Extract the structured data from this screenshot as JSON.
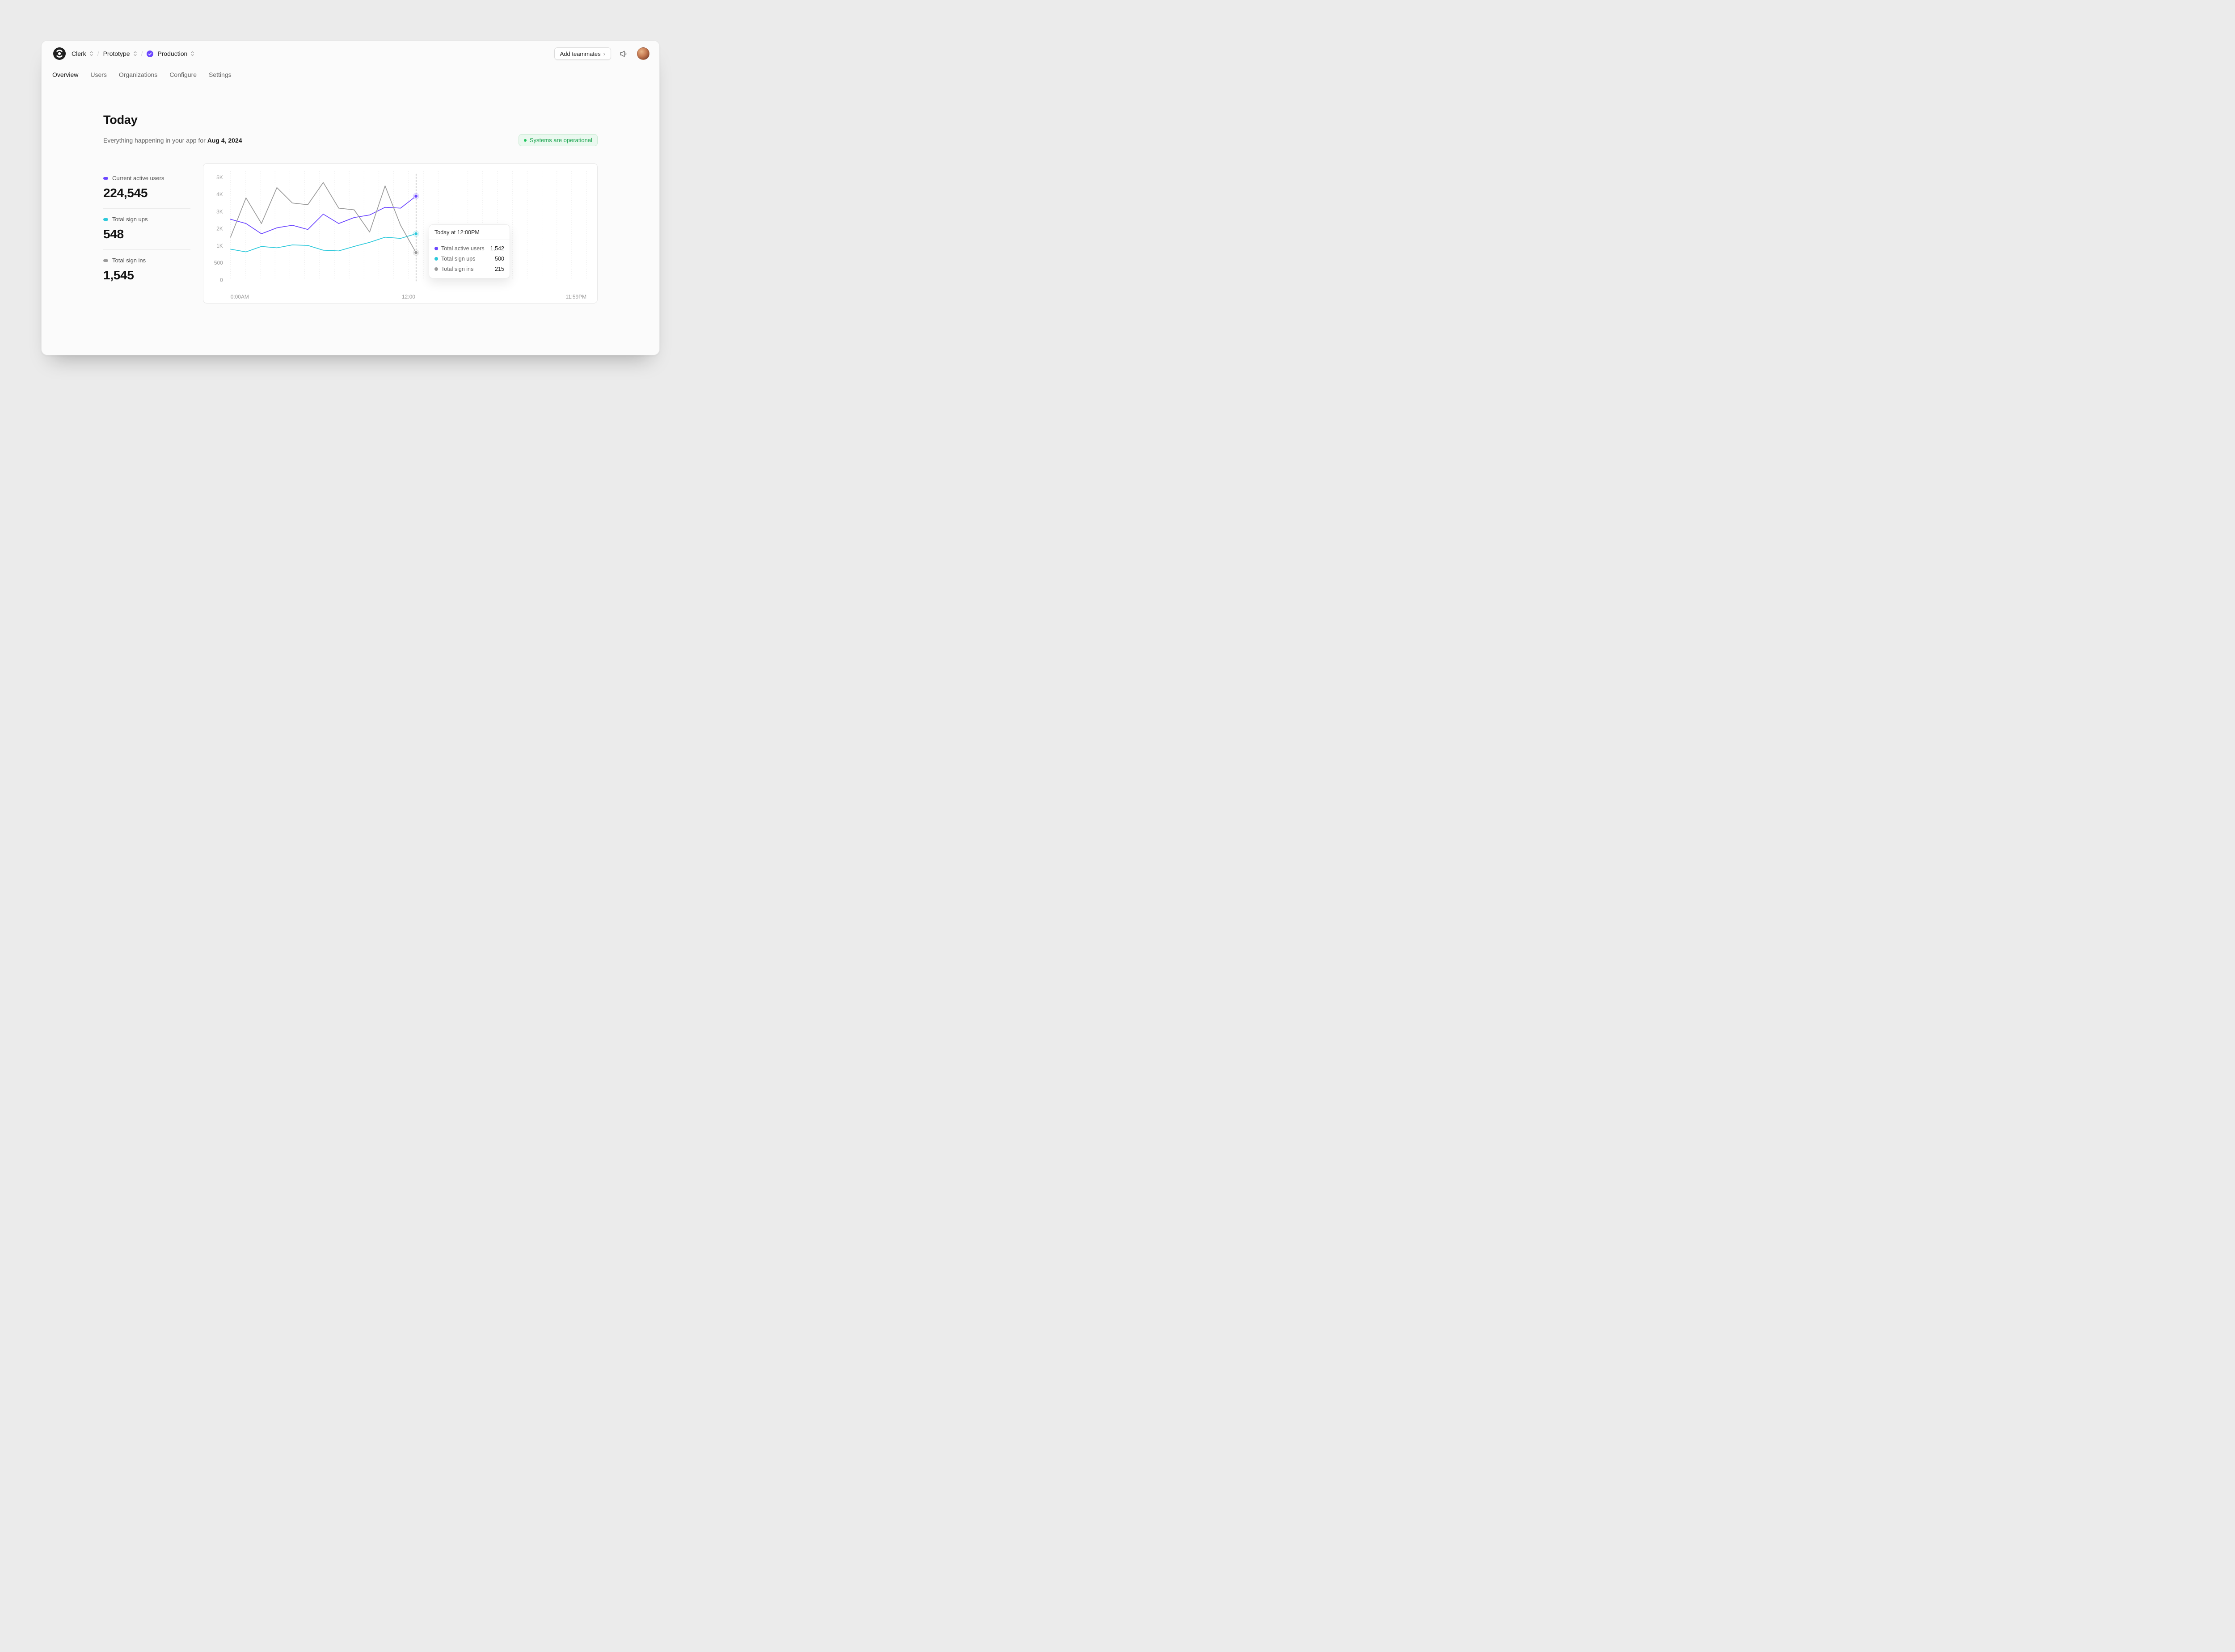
{
  "colors": {
    "accent_purple": "#6C47FF",
    "cyan": "#2DC9DB",
    "gray_series": "#9B9B9B",
    "status_green": "#17A34B"
  },
  "header": {
    "breadcrumb": [
      {
        "label": "Clerk"
      },
      {
        "label": "Prototype"
      },
      {
        "label": "Production"
      }
    ],
    "add_teammates_label": "Add teammates"
  },
  "nav": {
    "tabs": [
      {
        "label": "Overview",
        "active": true
      },
      {
        "label": "Users",
        "active": false
      },
      {
        "label": "Organizations",
        "active": false
      },
      {
        "label": "Configure",
        "active": false
      },
      {
        "label": "Settings",
        "active": false
      }
    ]
  },
  "main": {
    "title": "Today",
    "subtitle_prefix": "Everything happening in your app for ",
    "subtitle_date": "Aug 4, 2024",
    "status_badge": "Systems are operational",
    "stats": [
      {
        "label": "Current active users",
        "value": "224,545",
        "color": "#6C47FF"
      },
      {
        "label": "Total sign ups",
        "value": "548",
        "color": "#2DC9DB"
      },
      {
        "label": "Total sign ins",
        "value": "1,545",
        "color": "#9B9B9B"
      }
    ]
  },
  "tooltip": {
    "title": "Today at 12:00PM",
    "rows": [
      {
        "label": "Total active users",
        "value": "1,542",
        "color": "#6C47FF"
      },
      {
        "label": "Total sign ups",
        "value": "500",
        "color": "#2DC9DB"
      },
      {
        "label": "Total sign ins",
        "value": "215",
        "color": "#9B9B9B"
      }
    ]
  },
  "chart_data": {
    "type": "line",
    "title": "Today activity",
    "x_ticks": [
      "0:00AM",
      "12:00",
      "11:59PM"
    ],
    "y_ticks": [
      "0",
      "500",
      "1K",
      "2K",
      "3K",
      "4K",
      "5K"
    ],
    "y_tick_values": [
      0,
      500,
      1000,
      2000,
      3000,
      4000,
      5000
    ],
    "x_range_hours": [
      0,
      24
    ],
    "now_fraction": 0.521,
    "grid": "vertical-dotted",
    "legend_position": "none",
    "series": [
      {
        "name": "Total active users",
        "color": "#6C47FF",
        "values": [
          2550,
          2300,
          1700,
          2050,
          2200,
          1950,
          2850,
          2300,
          2650,
          2800,
          3250,
          3200,
          3900
        ]
      },
      {
        "name": "Total sign ups",
        "color": "#2DC9DB",
        "values": [
          900,
          820,
          980,
          940,
          1050,
          1020,
          870,
          850,
          980,
          1200,
          1500,
          1430,
          1700
        ]
      },
      {
        "name": "Total sign ins",
        "color": "#9B9B9B",
        "values": [
          1500,
          3800,
          2300,
          4400,
          3500,
          3400,
          4700,
          3200,
          3100,
          1800,
          4500,
          2200,
          800
        ]
      }
    ]
  }
}
